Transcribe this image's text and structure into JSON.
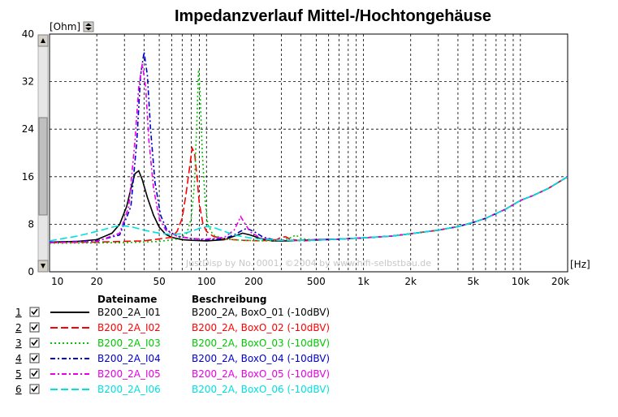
{
  "chart_data": {
    "type": "line",
    "title": "Impedanzverlauf Mittel-/Hochtongehäuse",
    "ylabel": "[Ohm]",
    "xlabel": "[Hz]",
    "x_scale": "log",
    "xlim": [
      10,
      20000
    ],
    "ylim": [
      0,
      40
    ],
    "x_ticks": [
      10,
      20,
      50,
      100,
      200,
      500,
      1000,
      2000,
      5000,
      10000,
      20000
    ],
    "x_tick_labels": [
      "10",
      "20",
      "50",
      "100",
      "200",
      "500",
      "1k",
      "2k",
      "5k",
      "10k",
      "20k"
    ],
    "y_ticks": [
      0,
      8,
      16,
      24,
      32,
      40
    ],
    "y_tick_labels": [
      "0",
      "8",
      "16",
      "24",
      "32",
      "40"
    ],
    "grid": true,
    "watermark": "JustDisp by No. 0001, ©2004 by www.hifi-selbstbau.de",
    "legend_headers": {
      "file": "Dateiname",
      "desc": "Beschreibung"
    },
    "series": [
      {
        "num": "1",
        "checked": true,
        "file": "B200_2A_I01",
        "desc": "B200_2A, BoxO_01 (-10dBV)",
        "color": "#000000",
        "dash": "solid",
        "points": [
          [
            10,
            5
          ],
          [
            15,
            5.1
          ],
          [
            20,
            5.4
          ],
          [
            25,
            6.5
          ],
          [
            28,
            8
          ],
          [
            31,
            11
          ],
          [
            33,
            14
          ],
          [
            35,
            16.5
          ],
          [
            37,
            17
          ],
          [
            39,
            15.5
          ],
          [
            42,
            12.5
          ],
          [
            46,
            9.5
          ],
          [
            50,
            7.5
          ],
          [
            55,
            6.3
          ],
          [
            60,
            5.8
          ],
          [
            70,
            5.4
          ],
          [
            80,
            5.3
          ],
          [
            100,
            5.2
          ],
          [
            130,
            5.4
          ],
          [
            150,
            6
          ],
          [
            170,
            6.5
          ],
          [
            190,
            6.2
          ],
          [
            220,
            5.6
          ],
          [
            260,
            5.2
          ],
          [
            320,
            5.2
          ],
          [
            400,
            5.3
          ],
          [
            500,
            5.4
          ],
          [
            700,
            5.5
          ],
          [
            1000,
            5.7
          ],
          [
            1500,
            6
          ],
          [
            2000,
            6.4
          ],
          [
            3000,
            7
          ],
          [
            4000,
            7.6
          ],
          [
            5000,
            8.3
          ],
          [
            6000,
            9
          ],
          [
            8000,
            10.5
          ],
          [
            10000,
            12
          ],
          [
            12000,
            12.8
          ],
          [
            15000,
            14
          ],
          [
            20000,
            16
          ]
        ]
      },
      {
        "num": "2",
        "checked": true,
        "file": "B200_2A_I02",
        "desc": "B200_2A, BoxO_02 (-10dBV)",
        "color": "#ff0000",
        "dash": "long",
        "points": [
          [
            10,
            4.9
          ],
          [
            20,
            5
          ],
          [
            40,
            5.2
          ],
          [
            60,
            5.8
          ],
          [
            65,
            6.8
          ],
          [
            70,
            9
          ],
          [
            74,
            13
          ],
          [
            78,
            17.5
          ],
          [
            81,
            20.8
          ],
          [
            84,
            20
          ],
          [
            87,
            16
          ],
          [
            90,
            11.5
          ],
          [
            95,
            8
          ],
          [
            100,
            6.8
          ],
          [
            110,
            6
          ],
          [
            130,
            5.5
          ],
          [
            170,
            5.3
          ],
          [
            220,
            5.2
          ],
          [
            280,
            5.4
          ],
          [
            300,
            5.8
          ],
          [
            320,
            5.9
          ],
          [
            340,
            5.5
          ],
          [
            400,
            5.2
          ],
          [
            500,
            5.3
          ],
          [
            700,
            5.5
          ],
          [
            1000,
            5.7
          ],
          [
            1500,
            6
          ],
          [
            2000,
            6.4
          ],
          [
            3000,
            7
          ],
          [
            4000,
            7.6
          ],
          [
            5000,
            8.3
          ],
          [
            6000,
            9
          ],
          [
            8000,
            10.5
          ],
          [
            10000,
            12
          ],
          [
            12000,
            12.8
          ],
          [
            15000,
            14
          ],
          [
            20000,
            16
          ]
        ]
      },
      {
        "num": "3",
        "checked": true,
        "file": "B200_2A_I03",
        "desc": "B200_2A, BoxO_03 (-10dBV)",
        "color": "#00c800",
        "dash": "dot",
        "points": [
          [
            10,
            4.8
          ],
          [
            30,
            4.9
          ],
          [
            50,
            5.1
          ],
          [
            65,
            5.5
          ],
          [
            75,
            6.5
          ],
          [
            80,
            9
          ],
          [
            84,
            15
          ],
          [
            87,
            26
          ],
          [
            89,
            34
          ],
          [
            91,
            30
          ],
          [
            94,
            20
          ],
          [
            98,
            12
          ],
          [
            102,
            8
          ],
          [
            110,
            6.2
          ],
          [
            130,
            5.5
          ],
          [
            170,
            5.3
          ],
          [
            240,
            5.2
          ],
          [
            300,
            5.3
          ],
          [
            350,
            5.8
          ],
          [
            370,
            6.2
          ],
          [
            400,
            5.6
          ],
          [
            500,
            5.3
          ],
          [
            700,
            5.5
          ],
          [
            1000,
            5.7
          ],
          [
            1500,
            6
          ],
          [
            2000,
            6.4
          ],
          [
            3000,
            7
          ],
          [
            4000,
            7.6
          ],
          [
            5000,
            8.3
          ],
          [
            6000,
            9
          ],
          [
            8000,
            10.5
          ],
          [
            10000,
            12
          ],
          [
            12000,
            12.8
          ],
          [
            15000,
            14
          ],
          [
            20000,
            16
          ]
        ]
      },
      {
        "num": "4",
        "checked": true,
        "file": "B200_2A_I04",
        "desc": "B200_2A, BoxO_04 (-10dBV)",
        "color": "#0000c8",
        "dash": "dashdot",
        "points": [
          [
            10,
            5
          ],
          [
            20,
            5.2
          ],
          [
            28,
            6.2
          ],
          [
            33,
            11
          ],
          [
            36,
            22
          ],
          [
            38,
            33
          ],
          [
            40,
            37
          ],
          [
            42,
            33
          ],
          [
            44,
            24
          ],
          [
            47,
            15
          ],
          [
            51,
            9.5
          ],
          [
            56,
            7
          ],
          [
            65,
            6
          ],
          [
            80,
            5.6
          ],
          [
            100,
            5.4
          ],
          [
            130,
            5.6
          ],
          [
            150,
            6.2
          ],
          [
            170,
            7
          ],
          [
            180,
            7.3
          ],
          [
            200,
            6.8
          ],
          [
            230,
            5.8
          ],
          [
            280,
            5.3
          ],
          [
            400,
            5.3
          ],
          [
            500,
            5.4
          ],
          [
            700,
            5.5
          ],
          [
            1000,
            5.7
          ],
          [
            1500,
            6
          ],
          [
            2000,
            6.4
          ],
          [
            3000,
            7
          ],
          [
            4000,
            7.6
          ],
          [
            5000,
            8.3
          ],
          [
            6000,
            9
          ],
          [
            8000,
            10.5
          ],
          [
            10000,
            12
          ],
          [
            12000,
            12.8
          ],
          [
            15000,
            14
          ],
          [
            20000,
            16
          ]
        ]
      },
      {
        "num": "5",
        "checked": true,
        "file": "B200_2A_I05",
        "desc": "B200_2A, BoxO_05 (-10dBV)",
        "color": "#e600e6",
        "dash": "dashdot",
        "points": [
          [
            10,
            4.9
          ],
          [
            20,
            5.1
          ],
          [
            28,
            6.5
          ],
          [
            32,
            11
          ],
          [
            35,
            22
          ],
          [
            37,
            31
          ],
          [
            39,
            35
          ],
          [
            41,
            31
          ],
          [
            43,
            22
          ],
          [
            46,
            14
          ],
          [
            50,
            9
          ],
          [
            55,
            7
          ],
          [
            65,
            6
          ],
          [
            80,
            5.6
          ],
          [
            100,
            5.5
          ],
          [
            130,
            5.8
          ],
          [
            150,
            7
          ],
          [
            160,
            8.5
          ],
          [
            165,
            9.3
          ],
          [
            175,
            8.2
          ],
          [
            190,
            6.7
          ],
          [
            220,
            5.7
          ],
          [
            280,
            5.3
          ],
          [
            400,
            5.3
          ],
          [
            500,
            5.4
          ],
          [
            700,
            5.5
          ],
          [
            1000,
            5.7
          ],
          [
            1500,
            6
          ],
          [
            2000,
            6.4
          ],
          [
            3000,
            7
          ],
          [
            4000,
            7.6
          ],
          [
            5000,
            8.3
          ],
          [
            6000,
            9
          ],
          [
            8000,
            10.5
          ],
          [
            10000,
            12
          ],
          [
            12000,
            12.8
          ],
          [
            15000,
            14
          ],
          [
            20000,
            16
          ]
        ]
      },
      {
        "num": "6",
        "checked": true,
        "file": "B200_2A_I06",
        "desc": "B200_2A, BoxO_06 (-10dBV)",
        "color": "#00e0e0",
        "dash": "long",
        "points": [
          [
            10,
            5.2
          ],
          [
            15,
            6
          ],
          [
            20,
            6.8
          ],
          [
            25,
            7.5
          ],
          [
            28,
            7.8
          ],
          [
            33,
            7.6
          ],
          [
            40,
            7
          ],
          [
            50,
            6.5
          ],
          [
            60,
            6.3
          ],
          [
            70,
            6.4
          ],
          [
            80,
            6.8
          ],
          [
            90,
            7.3
          ],
          [
            100,
            7.6
          ],
          [
            110,
            7.5
          ],
          [
            130,
            6.8
          ],
          [
            150,
            6.2
          ],
          [
            200,
            5.6
          ],
          [
            300,
            5.3
          ],
          [
            500,
            5.3
          ],
          [
            700,
            5.5
          ],
          [
            1000,
            5.7
          ],
          [
            1500,
            6
          ],
          [
            2000,
            6.4
          ],
          [
            3000,
            7
          ],
          [
            4000,
            7.6
          ],
          [
            5000,
            8.3
          ],
          [
            6000,
            9
          ],
          [
            8000,
            10.5
          ],
          [
            10000,
            12
          ],
          [
            12000,
            12.8
          ],
          [
            15000,
            14
          ],
          [
            20000,
            16
          ]
        ]
      }
    ]
  }
}
